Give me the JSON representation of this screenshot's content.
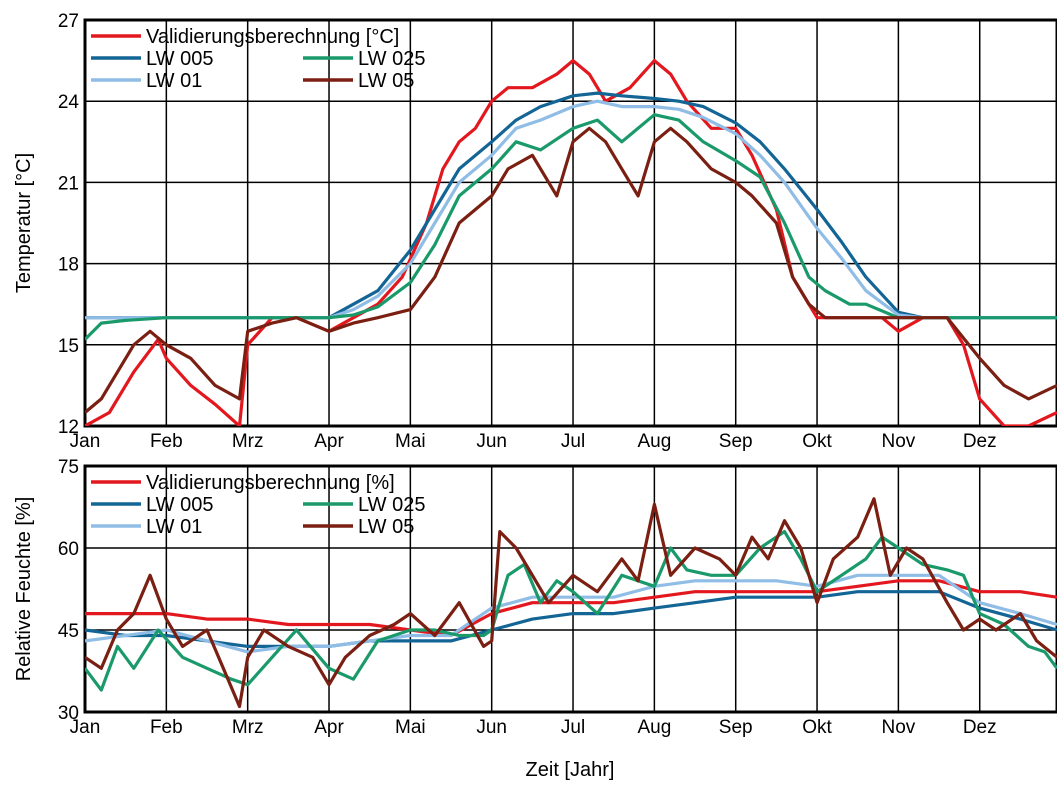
{
  "colors": {
    "Validierungsberechnung": "#e3181f",
    "LW 005": "#136596",
    "LW 025": "#1a9a6b",
    "LW 01": "#8fbde6",
    "LW 05": "#7a1f12"
  },
  "xlabel": "Zeit [Jahr]",
  "chart_data": [
    {
      "type": "line",
      "ylabel": "Temperatur [°C]",
      "ylim": [
        12,
        27
      ],
      "yticks": [
        12,
        15,
        18,
        21,
        24,
        27
      ],
      "grid": true,
      "legend_position": "top-left",
      "x_ticks": [
        "Jan",
        "Feb",
        "Mrz",
        "Apr",
        "Mai",
        "Jun",
        "Jul",
        "Aug",
        "Sep",
        "Okt",
        "Nov",
        "Dez"
      ],
      "x_ticks_pos": [
        0,
        1,
        2,
        3,
        4,
        5,
        6,
        7,
        8,
        9,
        10,
        11
      ],
      "xlim": [
        0,
        11.95
      ],
      "legend_rows": [
        [
          "Validierungsberechnung [°C]"
        ],
        [
          "LW 005",
          "LW 025"
        ],
        [
          "LW 01",
          "LW 05"
        ]
      ],
      "series": [
        {
          "name": "Validierungsberechnung [°C]",
          "key": "Validierungsberechnung",
          "x": [
            0,
            0.3,
            0.6,
            0.9,
            1.0,
            1.3,
            1.6,
            1.9,
            2.0,
            2.3,
            2.6,
            3.0,
            3.3,
            3.6,
            3.9,
            4.2,
            4.4,
            4.6,
            4.8,
            5.0,
            5.2,
            5.5,
            5.8,
            6.0,
            6.2,
            6.4,
            6.7,
            7.0,
            7.2,
            7.4,
            7.7,
            8.0,
            8.2,
            8.5,
            8.7,
            8.9,
            9.0,
            9.2,
            9.5,
            9.8,
            10.0,
            10.3,
            10.6,
            10.8,
            11.0,
            11.3,
            11.6,
            11.95
          ],
          "y": [
            12.0,
            12.5,
            14.0,
            15.2,
            14.5,
            13.5,
            12.8,
            12.0,
            15.0,
            16.0,
            16.0,
            15.5,
            16.0,
            16.5,
            17.5,
            19.5,
            21.5,
            22.5,
            23.0,
            24.0,
            24.5,
            24.5,
            25.0,
            25.5,
            25.0,
            24.0,
            24.5,
            25.5,
            25.0,
            24.0,
            23.0,
            23.0,
            22.0,
            20.0,
            17.5,
            16.5,
            16.0,
            16.0,
            16.0,
            16.0,
            15.5,
            16.0,
            16.0,
            15.0,
            13.0,
            12.0,
            12.0,
            12.5
          ]
        },
        {
          "name": "LW 005",
          "key": "LW 005",
          "x": [
            0,
            1.0,
            2.0,
            3.0,
            3.3,
            3.6,
            4.0,
            4.3,
            4.6,
            5.0,
            5.3,
            5.6,
            6.0,
            6.3,
            6.6,
            7.0,
            7.3,
            7.6,
            8.0,
            8.3,
            8.6,
            9.0,
            9.3,
            9.6,
            10.0,
            10.3,
            10.6,
            11.0,
            11.3,
            11.6,
            11.95
          ],
          "y": [
            16.0,
            16.0,
            16.0,
            16.0,
            16.5,
            17.0,
            18.5,
            20.0,
            21.5,
            22.5,
            23.3,
            23.8,
            24.2,
            24.3,
            24.2,
            24.1,
            24.0,
            23.8,
            23.2,
            22.5,
            21.5,
            20.0,
            18.8,
            17.5,
            16.2,
            16.0,
            16.0,
            16.0,
            16.0,
            16.0,
            16.0
          ]
        },
        {
          "name": "LW 01",
          "key": "LW 01",
          "x": [
            0,
            1.0,
            2.0,
            3.0,
            3.3,
            3.6,
            4.0,
            4.3,
            4.6,
            5.0,
            5.3,
            5.6,
            6.0,
            6.3,
            6.6,
            7.0,
            7.3,
            7.6,
            8.0,
            8.3,
            8.6,
            9.0,
            9.3,
            9.6,
            10.0,
            10.3,
            10.6,
            11.0,
            11.3,
            11.6,
            11.95
          ],
          "y": [
            16.0,
            16.0,
            16.0,
            16.0,
            16.3,
            16.8,
            18.0,
            19.5,
            21.0,
            22.0,
            23.0,
            23.3,
            23.8,
            24.0,
            23.8,
            23.8,
            23.7,
            23.4,
            22.8,
            22.0,
            21.0,
            19.3,
            18.2,
            17.0,
            16.1,
            16.0,
            16.0,
            16.0,
            16.0,
            16.0,
            16.0
          ]
        },
        {
          "name": "LW 025",
          "key": "LW 025",
          "x": [
            0,
            0.2,
            0.5,
            1.0,
            1.5,
            2.0,
            2.5,
            3.0,
            3.3,
            3.6,
            4.0,
            4.3,
            4.6,
            5.0,
            5.3,
            5.6,
            6.0,
            6.3,
            6.6,
            7.0,
            7.3,
            7.6,
            8.0,
            8.3,
            8.6,
            8.9,
            9.1,
            9.4,
            9.6,
            10.0,
            10.5,
            11.0,
            11.5,
            11.95
          ],
          "y": [
            15.2,
            15.8,
            15.9,
            16.0,
            16.0,
            16.0,
            16.0,
            16.0,
            16.1,
            16.4,
            17.3,
            18.7,
            20.5,
            21.5,
            22.5,
            22.2,
            23.0,
            23.3,
            22.5,
            23.5,
            23.3,
            22.5,
            21.8,
            21.2,
            19.5,
            17.5,
            17.0,
            16.5,
            16.5,
            16.0,
            16.0,
            16.0,
            16.0,
            16.0
          ]
        },
        {
          "name": "LW 05",
          "key": "LW 05",
          "x": [
            0,
            0.2,
            0.4,
            0.6,
            0.8,
            1.0,
            1.3,
            1.6,
            1.9,
            2.0,
            2.3,
            2.6,
            3.0,
            3.3,
            3.6,
            4.0,
            4.3,
            4.6,
            5.0,
            5.2,
            5.5,
            5.8,
            6.0,
            6.2,
            6.4,
            6.6,
            6.8,
            7.0,
            7.2,
            7.4,
            7.7,
            8.0,
            8.2,
            8.5,
            8.7,
            8.9,
            9.1,
            9.4,
            9.7,
            10.0,
            10.3,
            10.6,
            11.0,
            11.3,
            11.6,
            11.95
          ],
          "y": [
            12.5,
            13.0,
            14.0,
            15.0,
            15.5,
            15.0,
            14.5,
            13.5,
            13.0,
            15.5,
            15.8,
            16.0,
            15.5,
            15.8,
            16.0,
            16.3,
            17.5,
            19.5,
            20.5,
            21.5,
            22.0,
            20.5,
            22.5,
            23.0,
            22.5,
            21.5,
            20.5,
            22.5,
            23.0,
            22.5,
            21.5,
            21.0,
            20.5,
            19.5,
            17.5,
            16.5,
            16.0,
            16.0,
            16.0,
            16.0,
            16.0,
            16.0,
            14.5,
            13.5,
            13.0,
            13.5
          ]
        }
      ]
    },
    {
      "type": "line",
      "ylabel": "Relative Feuchte [%]",
      "ylim": [
        30,
        75
      ],
      "yticks": [
        30,
        45,
        60,
        75
      ],
      "grid": true,
      "legend_position": "top-left",
      "x_ticks": [
        "Jan",
        "Feb",
        "Mrz",
        "Apr",
        "Mai",
        "Jun",
        "Jul",
        "Aug",
        "Sep",
        "Okt",
        "Nov",
        "Dez"
      ],
      "x_ticks_pos": [
        0,
        1,
        2,
        3,
        4,
        5,
        6,
        7,
        8,
        9,
        10,
        11
      ],
      "xlim": [
        0,
        11.95
      ],
      "legend_rows": [
        [
          "Validierungsberechnung [%]"
        ],
        [
          "LW 005",
          "LW 025"
        ],
        [
          "LW 01",
          "LW 05"
        ]
      ],
      "series": [
        {
          "name": "Validierungsberechnung [%]",
          "key": "Validierungsberechnung",
          "x": [
            0,
            0.5,
            1.0,
            1.5,
            2.0,
            2.5,
            3.0,
            3.5,
            4.0,
            4.5,
            5.0,
            5.5,
            6.0,
            6.5,
            7.0,
            7.5,
            8.0,
            8.5,
            9.0,
            9.5,
            10.0,
            10.5,
            11.0,
            11.5,
            11.95
          ],
          "y": [
            48,
            48,
            48,
            47,
            47,
            46,
            46,
            46,
            45,
            44,
            48,
            50,
            50,
            50,
            51,
            52,
            52,
            52,
            52,
            53,
            54,
            54,
            52,
            52,
            51
          ]
        },
        {
          "name": "LW 005",
          "key": "LW 005",
          "x": [
            0,
            0.5,
            1.0,
            1.5,
            2.0,
            2.5,
            3.0,
            3.5,
            4.0,
            4.5,
            5.0,
            5.5,
            6.0,
            6.5,
            7.0,
            7.5,
            8.0,
            8.5,
            9.0,
            9.5,
            10.0,
            10.5,
            11.0,
            11.5,
            11.95
          ],
          "y": [
            45,
            44,
            44,
            43,
            42,
            42,
            42,
            43,
            43,
            43,
            45,
            47,
            48,
            48,
            49,
            50,
            51,
            51,
            51,
            52,
            52,
            52,
            49,
            47,
            45
          ]
        },
        {
          "name": "LW 01",
          "key": "LW 01",
          "x": [
            0,
            0.5,
            1.0,
            1.5,
            2.0,
            2.5,
            3.0,
            3.5,
            4.0,
            4.5,
            5.0,
            5.5,
            6.0,
            6.5,
            7.0,
            7.5,
            8.0,
            8.5,
            9.0,
            9.5,
            10.0,
            10.5,
            11.0,
            11.5,
            11.95
          ],
          "y": [
            43,
            44,
            45,
            43,
            41,
            42,
            42,
            43,
            44,
            44,
            49,
            51,
            51,
            51,
            53,
            54,
            54,
            54,
            53,
            55,
            55,
            55,
            50,
            48,
            46
          ]
        },
        {
          "name": "LW 025",
          "key": "LW 025",
          "x": [
            0,
            0.2,
            0.4,
            0.6,
            0.9,
            1.2,
            1.5,
            1.8,
            2.0,
            2.3,
            2.6,
            3.0,
            3.3,
            3.6,
            4.0,
            4.3,
            4.6,
            4.9,
            5.0,
            5.2,
            5.4,
            5.6,
            5.8,
            6.0,
            6.3,
            6.6,
            7.0,
            7.2,
            7.4,
            7.7,
            8.0,
            8.3,
            8.6,
            8.8,
            9.0,
            9.3,
            9.6,
            9.8,
            10.0,
            10.3,
            10.6,
            10.8,
            11.0,
            11.3,
            11.6,
            11.8,
            11.95
          ],
          "y": [
            38,
            34,
            42,
            38,
            45,
            40,
            38,
            36,
            35,
            40,
            45,
            38,
            36,
            43,
            45,
            45,
            44,
            44,
            45,
            55,
            57,
            50,
            54,
            52,
            48,
            55,
            53,
            60,
            56,
            55,
            55,
            60,
            63,
            58,
            52,
            55,
            58,
            62,
            60,
            57,
            56,
            55,
            48,
            46,
            42,
            41,
            38
          ]
        },
        {
          "name": "LW 05",
          "key": "LW 05",
          "x": [
            0,
            0.2,
            0.4,
            0.6,
            0.8,
            1.0,
            1.2,
            1.5,
            1.7,
            1.9,
            2.0,
            2.2,
            2.5,
            2.8,
            3.0,
            3.2,
            3.5,
            3.8,
            4.0,
            4.3,
            4.6,
            4.9,
            5.0,
            5.1,
            5.3,
            5.5,
            5.7,
            6.0,
            6.3,
            6.6,
            6.8,
            7.0,
            7.2,
            7.5,
            7.8,
            8.0,
            8.2,
            8.4,
            8.6,
            8.8,
            9.0,
            9.2,
            9.5,
            9.7,
            9.9,
            10.1,
            10.3,
            10.6,
            10.8,
            11.0,
            11.2,
            11.5,
            11.7,
            11.95
          ],
          "y": [
            40,
            38,
            45,
            48,
            55,
            47,
            42,
            45,
            38,
            31,
            40,
            45,
            42,
            40,
            35,
            40,
            44,
            46,
            48,
            44,
            50,
            42,
            43,
            63,
            60,
            55,
            50,
            55,
            52,
            58,
            54,
            68,
            55,
            60,
            58,
            55,
            62,
            58,
            65,
            60,
            50,
            58,
            62,
            69,
            55,
            60,
            58,
            50,
            45,
            47,
            45,
            48,
            43,
            40
          ]
        }
      ]
    }
  ]
}
